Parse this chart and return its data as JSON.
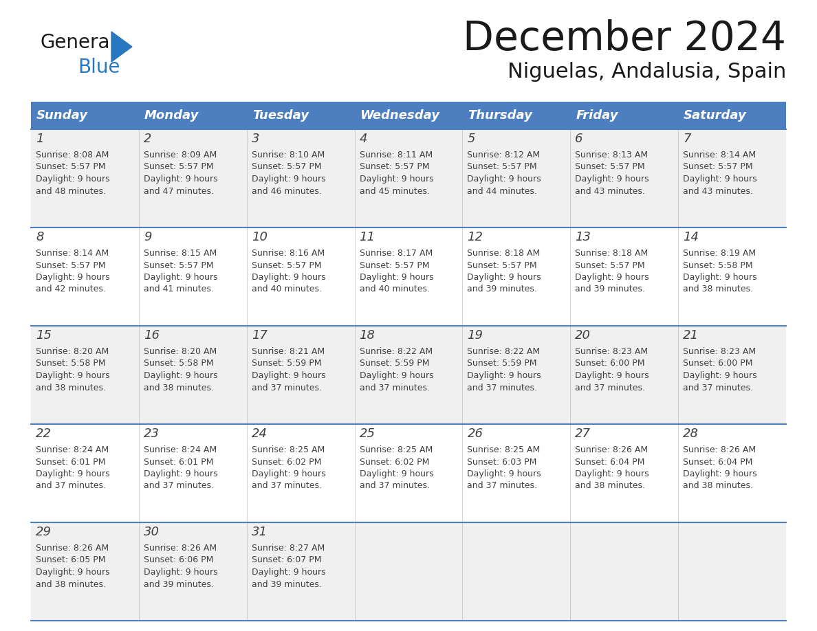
{
  "title": "December 2024",
  "subtitle": "Niguelas, Andalusia, Spain",
  "header_color": "#4d7ebf",
  "header_text_color": "#FFFFFF",
  "day_names": [
    "Sunday",
    "Monday",
    "Tuesday",
    "Wednesday",
    "Thursday",
    "Friday",
    "Saturday"
  ],
  "background_color": "#FFFFFF",
  "cell_bg_color": "#FFFFFF",
  "row_alt_bg": "#f0f0f0",
  "border_color": "#4d7ebf",
  "text_color": "#404040",
  "logo_general_color": "#1a1a1a",
  "logo_blue_color": "#2878C0",
  "title_color": "#1a1a1a",
  "days": [
    {
      "day": 1,
      "col": 0,
      "row": 0,
      "sunrise": "8:08 AM",
      "sunset": "5:57 PM",
      "daylight_h": "9 hours",
      "daylight_m": "48 minutes"
    },
    {
      "day": 2,
      "col": 1,
      "row": 0,
      "sunrise": "8:09 AM",
      "sunset": "5:57 PM",
      "daylight_h": "9 hours",
      "daylight_m": "47 minutes"
    },
    {
      "day": 3,
      "col": 2,
      "row": 0,
      "sunrise": "8:10 AM",
      "sunset": "5:57 PM",
      "daylight_h": "9 hours",
      "daylight_m": "46 minutes"
    },
    {
      "day": 4,
      "col": 3,
      "row": 0,
      "sunrise": "8:11 AM",
      "sunset": "5:57 PM",
      "daylight_h": "9 hours",
      "daylight_m": "45 minutes"
    },
    {
      "day": 5,
      "col": 4,
      "row": 0,
      "sunrise": "8:12 AM",
      "sunset": "5:57 PM",
      "daylight_h": "9 hours",
      "daylight_m": "44 minutes"
    },
    {
      "day": 6,
      "col": 5,
      "row": 0,
      "sunrise": "8:13 AM",
      "sunset": "5:57 PM",
      "daylight_h": "9 hours",
      "daylight_m": "43 minutes"
    },
    {
      "day": 7,
      "col": 6,
      "row": 0,
      "sunrise": "8:14 AM",
      "sunset": "5:57 PM",
      "daylight_h": "9 hours",
      "daylight_m": "43 minutes"
    },
    {
      "day": 8,
      "col": 0,
      "row": 1,
      "sunrise": "8:14 AM",
      "sunset": "5:57 PM",
      "daylight_h": "9 hours",
      "daylight_m": "42 minutes"
    },
    {
      "day": 9,
      "col": 1,
      "row": 1,
      "sunrise": "8:15 AM",
      "sunset": "5:57 PM",
      "daylight_h": "9 hours",
      "daylight_m": "41 minutes"
    },
    {
      "day": 10,
      "col": 2,
      "row": 1,
      "sunrise": "8:16 AM",
      "sunset": "5:57 PM",
      "daylight_h": "9 hours",
      "daylight_m": "40 minutes"
    },
    {
      "day": 11,
      "col": 3,
      "row": 1,
      "sunrise": "8:17 AM",
      "sunset": "5:57 PM",
      "daylight_h": "9 hours",
      "daylight_m": "40 minutes"
    },
    {
      "day": 12,
      "col": 4,
      "row": 1,
      "sunrise": "8:18 AM",
      "sunset": "5:57 PM",
      "daylight_h": "9 hours",
      "daylight_m": "39 minutes"
    },
    {
      "day": 13,
      "col": 5,
      "row": 1,
      "sunrise": "8:18 AM",
      "sunset": "5:57 PM",
      "daylight_h": "9 hours",
      "daylight_m": "39 minutes"
    },
    {
      "day": 14,
      "col": 6,
      "row": 1,
      "sunrise": "8:19 AM",
      "sunset": "5:58 PM",
      "daylight_h": "9 hours",
      "daylight_m": "38 minutes"
    },
    {
      "day": 15,
      "col": 0,
      "row": 2,
      "sunrise": "8:20 AM",
      "sunset": "5:58 PM",
      "daylight_h": "9 hours",
      "daylight_m": "38 minutes"
    },
    {
      "day": 16,
      "col": 1,
      "row": 2,
      "sunrise": "8:20 AM",
      "sunset": "5:58 PM",
      "daylight_h": "9 hours",
      "daylight_m": "38 minutes"
    },
    {
      "day": 17,
      "col": 2,
      "row": 2,
      "sunrise": "8:21 AM",
      "sunset": "5:59 PM",
      "daylight_h": "9 hours",
      "daylight_m": "37 minutes"
    },
    {
      "day": 18,
      "col": 3,
      "row": 2,
      "sunrise": "8:22 AM",
      "sunset": "5:59 PM",
      "daylight_h": "9 hours",
      "daylight_m": "37 minutes"
    },
    {
      "day": 19,
      "col": 4,
      "row": 2,
      "sunrise": "8:22 AM",
      "sunset": "5:59 PM",
      "daylight_h": "9 hours",
      "daylight_m": "37 minutes"
    },
    {
      "day": 20,
      "col": 5,
      "row": 2,
      "sunrise": "8:23 AM",
      "sunset": "6:00 PM",
      "daylight_h": "9 hours",
      "daylight_m": "37 minutes"
    },
    {
      "day": 21,
      "col": 6,
      "row": 2,
      "sunrise": "8:23 AM",
      "sunset": "6:00 PM",
      "daylight_h": "9 hours",
      "daylight_m": "37 minutes"
    },
    {
      "day": 22,
      "col": 0,
      "row": 3,
      "sunrise": "8:24 AM",
      "sunset": "6:01 PM",
      "daylight_h": "9 hours",
      "daylight_m": "37 minutes"
    },
    {
      "day": 23,
      "col": 1,
      "row": 3,
      "sunrise": "8:24 AM",
      "sunset": "6:01 PM",
      "daylight_h": "9 hours",
      "daylight_m": "37 minutes"
    },
    {
      "day": 24,
      "col": 2,
      "row": 3,
      "sunrise": "8:25 AM",
      "sunset": "6:02 PM",
      "daylight_h": "9 hours",
      "daylight_m": "37 minutes"
    },
    {
      "day": 25,
      "col": 3,
      "row": 3,
      "sunrise": "8:25 AM",
      "sunset": "6:02 PM",
      "daylight_h": "9 hours",
      "daylight_m": "37 minutes"
    },
    {
      "day": 26,
      "col": 4,
      "row": 3,
      "sunrise": "8:25 AM",
      "sunset": "6:03 PM",
      "daylight_h": "9 hours",
      "daylight_m": "37 minutes"
    },
    {
      "day": 27,
      "col": 5,
      "row": 3,
      "sunrise": "8:26 AM",
      "sunset": "6:04 PM",
      "daylight_h": "9 hours",
      "daylight_m": "38 minutes"
    },
    {
      "day": 28,
      "col": 6,
      "row": 3,
      "sunrise": "8:26 AM",
      "sunset": "6:04 PM",
      "daylight_h": "9 hours",
      "daylight_m": "38 minutes"
    },
    {
      "day": 29,
      "col": 0,
      "row": 4,
      "sunrise": "8:26 AM",
      "sunset": "6:05 PM",
      "daylight_h": "9 hours",
      "daylight_m": "38 minutes"
    },
    {
      "day": 30,
      "col": 1,
      "row": 4,
      "sunrise": "8:26 AM",
      "sunset": "6:06 PM",
      "daylight_h": "9 hours",
      "daylight_m": "39 minutes"
    },
    {
      "day": 31,
      "col": 2,
      "row": 4,
      "sunrise": "8:27 AM",
      "sunset": "6:07 PM",
      "daylight_h": "9 hours",
      "daylight_m": "39 minutes"
    }
  ]
}
